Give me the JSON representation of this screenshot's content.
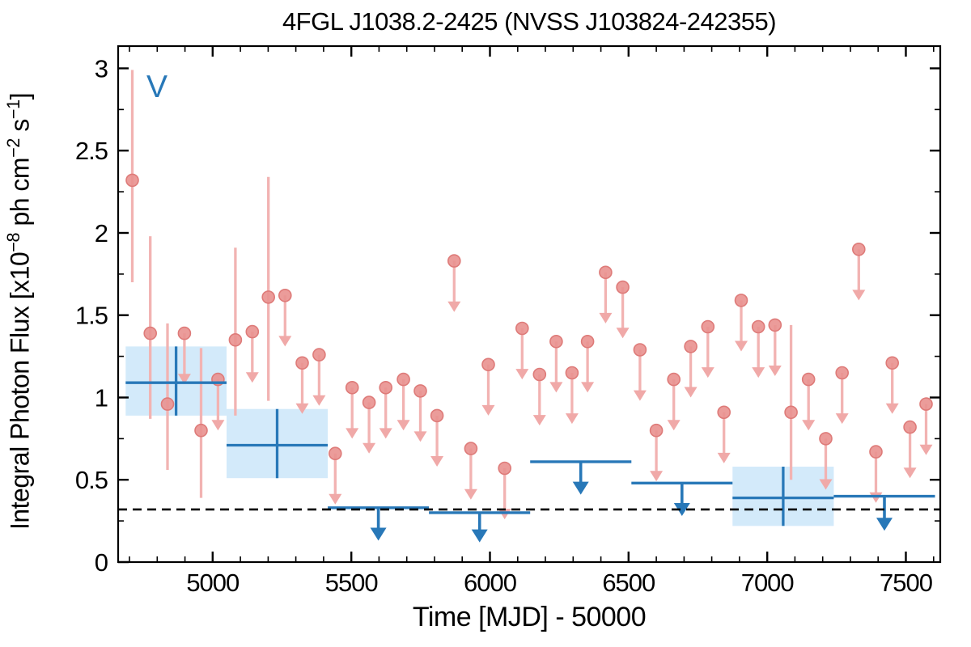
{
  "chart_data": {
    "type": "scatter",
    "title": "4FGL J1038.2-2425 (NVSS J103824-242355)",
    "xlabel": "Time [MJD] - 50000",
    "ylabel": "Integral Photon Flux [x10^-8 ph cm^-2 s^-1]",
    "ylabel_parts": {
      "p1": "Integral Photon Flux [x10",
      "e1": "−8",
      "p2": " ph cm",
      "e2": "−2",
      "p3": " s",
      "e3": "−1",
      "p4": "]"
    },
    "legend": "V",
    "xlim": [
      4659,
      7624
    ],
    "ylim": [
      0,
      3.135
    ],
    "grid": false,
    "tick_direction": "in",
    "xticks": {
      "major": [
        5000,
        5500,
        6000,
        6500,
        7000,
        7500
      ],
      "labels": [
        "5000",
        "5500",
        "6000",
        "6500",
        "7000",
        "7500"
      ],
      "minor_step": 100
    },
    "yticks": {
      "major": [
        0,
        0.5,
        1,
        1.5,
        2,
        2.5,
        3
      ],
      "labels": [
        "0",
        "0.5",
        "1",
        "1.5",
        "2",
        "2.5",
        "3"
      ],
      "minor_step": 0.25
    },
    "dashed_line_y": 0.32,
    "detections": {
      "x": [
        4710,
        4775,
        4837,
        4958,
        5082,
        5201,
        7086
      ],
      "y": [
        2.32,
        1.39,
        0.96,
        0.8,
        1.35,
        1.61,
        0.91
      ],
      "ylo": [
        1.7,
        0.87,
        0.56,
        0.39,
        0.89,
        0.98,
        0.5
      ],
      "yhi": [
        2.99,
        1.98,
        1.45,
        1.3,
        1.91,
        2.34,
        1.44
      ]
    },
    "upper_limits": {
      "x": [
        4898,
        5019,
        5143,
        5261,
        5323,
        5384,
        5442,
        5503,
        5564,
        5624,
        5688,
        5749,
        5809,
        5871,
        5931,
        5994,
        6053,
        6116,
        6179,
        6239,
        6296,
        6352,
        6417,
        6479,
        6541,
        6600,
        6663,
        6724,
        6786,
        6844,
        6906,
        6968,
        7028,
        7149,
        7211,
        7270,
        7330,
        7392,
        7451,
        7515,
        7573
      ],
      "y": [
        1.39,
        1.11,
        1.4,
        1.62,
        1.21,
        1.26,
        0.66,
        1.06,
        0.97,
        1.06,
        1.11,
        1.04,
        0.89,
        1.83,
        0.69,
        1.2,
        0.57,
        1.42,
        1.14,
        1.34,
        1.15,
        1.34,
        1.76,
        1.67,
        1.29,
        0.8,
        1.11,
        1.31,
        1.43,
        0.91,
        1.59,
        1.43,
        1.44,
        1.11,
        0.75,
        1.15,
        1.9,
        0.67,
        1.21,
        0.82,
        0.96
      ]
    },
    "red_arrow_len": 0.31,
    "yearly_boxes": [
      {
        "x0": 4686,
        "x1": 5050,
        "y": 1.09,
        "y0": 0.89,
        "y1": 1.31
      },
      {
        "x0": 5050,
        "x1": 5415,
        "y": 0.71,
        "y0": 0.51,
        "y1": 0.93
      },
      {
        "x0": 6875,
        "x1": 7240,
        "y": 0.39,
        "y0": 0.22,
        "y1": 0.58
      }
    ],
    "yearly_upper_limits": [
      {
        "x0": 5415,
        "x1": 5780,
        "y": 0.33,
        "tip": 0.13
      },
      {
        "x0": 5780,
        "x1": 6145,
        "y": 0.3,
        "tip": 0.12
      },
      {
        "x0": 6145,
        "x1": 6510,
        "y": 0.61,
        "tip": 0.41
      },
      {
        "x0": 6510,
        "x1": 6875,
        "y": 0.48,
        "tip": 0.28
      },
      {
        "x0": 7240,
        "x1": 7605,
        "y": 0.4,
        "tip": 0.19
      }
    ],
    "colors": {
      "marker_fill": "#e9918f",
      "marker_edge": "#de7b79",
      "errorbar": "#f2b3b2",
      "arrowhead_red": "#f0a9a8",
      "blue": "#2878b8",
      "box_fill": "#d3eafa",
      "dashed": "#000000",
      "axis": "#000000"
    }
  }
}
